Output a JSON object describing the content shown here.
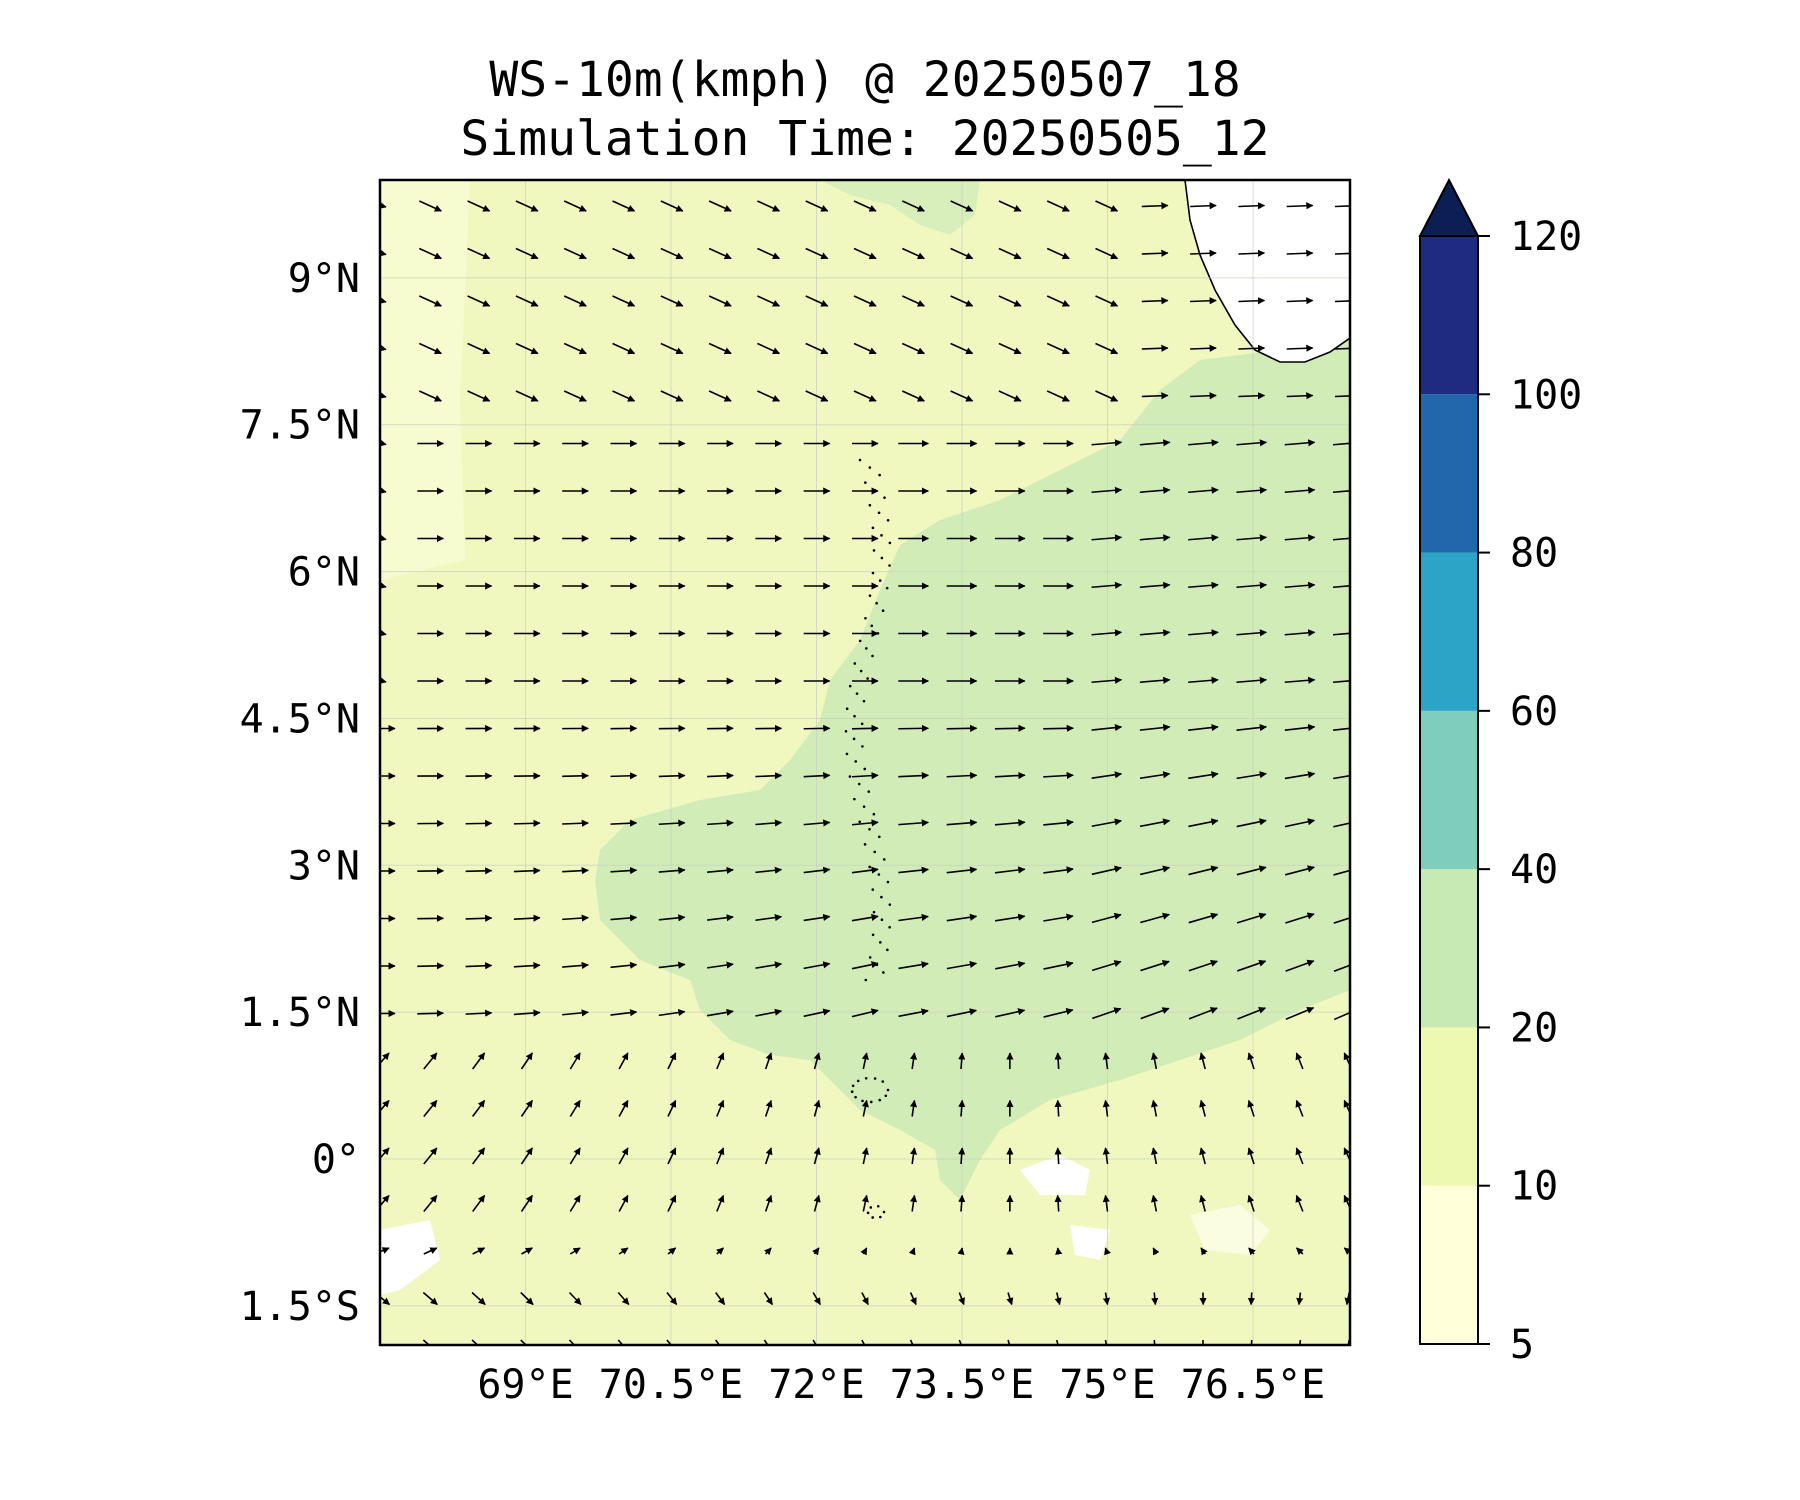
{
  "title": {
    "line1": "WS-10m(kmph) @ 20250507_18",
    "line2": "Simulation Time: 20250505_12"
  },
  "map": {
    "lon_range": [
      67.5,
      77.5
    ],
    "lat_range": [
      -1.9,
      10.0
    ],
    "lon_ticks": [
      {
        "value": 69.0,
        "label": "69°E"
      },
      {
        "value": 70.5,
        "label": "70.5°E"
      },
      {
        "value": 72.0,
        "label": "72°E"
      },
      {
        "value": 73.5,
        "label": "73.5°E"
      },
      {
        "value": 75.0,
        "label": "75°E"
      },
      {
        "value": 76.5,
        "label": "76.5°E"
      }
    ],
    "lat_ticks": [
      {
        "value": 9.0,
        "label": "9°N"
      },
      {
        "value": 7.5,
        "label": "7.5°N"
      },
      {
        "value": 6.0,
        "label": "6°N"
      },
      {
        "value": 4.5,
        "label": "4.5°N"
      },
      {
        "value": 3.0,
        "label": "3°N"
      },
      {
        "value": 1.5,
        "label": "1.5°N"
      },
      {
        "value": 0.0,
        "label": "0°"
      },
      {
        "value": -1.5,
        "label": "1.5°S"
      }
    ],
    "gridlines": true,
    "field": "10 m wind speed (kmph) with wind vectors",
    "colors": {
      "low": "#f0f8c0",
      "mid": "#d2ecb8",
      "land": "#ffffff",
      "grid": "#c8d0c0"
    }
  },
  "colorbar": {
    "levels": [
      5,
      10,
      20,
      40,
      60,
      80,
      100,
      120
    ],
    "colors": [
      "#ffffd9",
      "#edf8b1",
      "#c7e9b4",
      "#7fcdbb",
      "#2ba4c8",
      "#2167ac",
      "#1d2c80"
    ],
    "extend_color": "#0b1f55",
    "extend": "max"
  }
}
